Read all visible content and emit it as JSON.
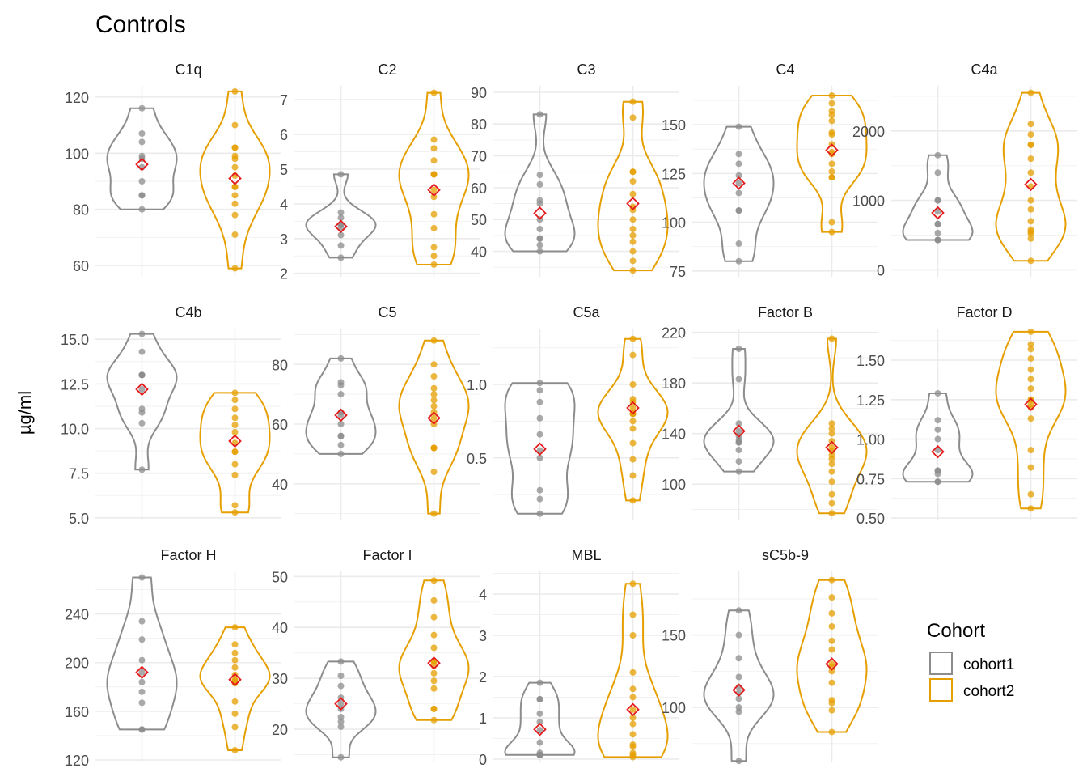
{
  "chart_data": {
    "type": "violin",
    "title": "Controls",
    "ylabel": "µg/ml",
    "xlabel": "",
    "grid": true,
    "legend": {
      "title": "Cohort",
      "placement": "right",
      "entries": [
        {
          "name": "cohort1",
          "color": "#8c8c8c"
        },
        {
          "name": "cohort2",
          "color": "#e69f00"
        }
      ]
    },
    "colors": {
      "cohort1": "#8c8c8c",
      "cohort2": "#e69f00",
      "mean_marker": "#e41a1c",
      "grid": "#ebebeb"
    },
    "groups": [
      "cohort1",
      "cohort2"
    ],
    "panels": [
      {
        "name": "C1q",
        "ylim": [
          56,
          124
        ],
        "ticks": [
          60,
          80,
          100,
          120
        ],
        "cohort1": {
          "min": 80,
          "max": 116,
          "mean": 96,
          "points": [
            80,
            85,
            85,
            90,
            95,
            98,
            99,
            104,
            107,
            116
          ]
        },
        "cohort2": {
          "min": 59,
          "max": 122,
          "mean": 91,
          "points": [
            59,
            71,
            78,
            82,
            85,
            88,
            88,
            92,
            95,
            98,
            99,
            102,
            102,
            110,
            122
          ]
        }
      },
      {
        "name": "C2",
        "ylim": [
          1.9,
          7.4
        ],
        "ticks": [
          2,
          3,
          4,
          5,
          6,
          7
        ],
        "cohort1": {
          "min": 2.45,
          "max": 4.85,
          "mean": 3.35,
          "points": [
            2.45,
            2.8,
            3.1,
            3.3,
            3.4,
            3.4,
            3.6,
            3.75,
            4.85
          ]
        },
        "cohort2": {
          "min": 2.25,
          "max": 7.2,
          "mean": 4.4,
          "points": [
            2.25,
            2.5,
            2.75,
            3.3,
            3.7,
            4.2,
            4.4,
            4.85,
            4.85,
            4.85,
            5.25,
            5.6,
            5.85,
            7.2
          ]
        }
      },
      {
        "name": "C3",
        "ylim": [
          32,
          92
        ],
        "ticks": [
          40,
          50,
          60,
          70,
          80,
          90
        ],
        "cohort1": {
          "min": 40,
          "max": 83,
          "mean": 52,
          "points": [
            40,
            42,
            44,
            44,
            47,
            50,
            55,
            56,
            61,
            64,
            83
          ]
        },
        "cohort2": {
          "min": 34,
          "max": 87,
          "mean": 55,
          "points": [
            34,
            37,
            40,
            43,
            45,
            47,
            50,
            53,
            54,
            58,
            62,
            65,
            65,
            82,
            87
          ]
        }
      },
      {
        "name": "C4",
        "ylim": [
          72,
          170
        ],
        "ticks": [
          75,
          100,
          125,
          150
        ],
        "cohort1": {
          "min": 80,
          "max": 149,
          "mean": 120,
          "points": [
            80,
            89,
            106,
            106,
            115,
            120,
            124,
            130,
            135,
            149
          ]
        },
        "cohort2": {
          "min": 95,
          "max": 165,
          "mean": 137,
          "points": [
            95,
            100,
            123,
            123,
            126,
            130,
            135,
            136,
            140,
            145,
            146,
            152,
            155,
            157,
            161,
            165
          ]
        }
      },
      {
        "name": "C4a",
        "ylim": [
          -100,
          2650
        ],
        "ticks": [
          0,
          1000,
          2000
        ],
        "cohort1": {
          "min": 430,
          "max": 1650,
          "mean": 820,
          "points": [
            430,
            430,
            430,
            530,
            660,
            660,
            840,
            1000,
            1000,
            1400,
            1650
          ]
        },
        "cohort2": {
          "min": 130,
          "max": 2550,
          "mean": 1230,
          "points": [
            130,
            450,
            520,
            550,
            580,
            700,
            870,
            1000,
            1200,
            1400,
            1600,
            1800,
            1800,
            1950,
            2100,
            2550
          ]
        }
      },
      {
        "name": "C4b",
        "ylim": [
          4.9,
          15.6
        ],
        "ticks": [
          5.0,
          7.5,
          10.0,
          12.5,
          15.0
        ],
        "cohort1": {
          "min": 7.7,
          "max": 15.3,
          "mean": 12.2,
          "points": [
            7.7,
            10.3,
            10.9,
            11.1,
            12.2,
            13.0,
            13.0,
            13.0,
            13.0,
            14.3,
            15.3
          ]
        },
        "cohort2": {
          "min": 5.3,
          "max": 12.0,
          "mean": 9.3,
          "points": [
            5.3,
            5.7,
            7.4,
            8.0,
            8.7,
            8.7,
            9.2,
            9.8,
            10.2,
            10.6,
            11.1,
            11.6,
            12.0
          ]
        }
      },
      {
        "name": "C5",
        "ylim": [
          28,
          92
        ],
        "ticks": [
          40,
          60,
          80
        ],
        "cohort1": {
          "min": 50,
          "max": 82,
          "mean": 63,
          "points": [
            50,
            53,
            56,
            56,
            60,
            63,
            64,
            70,
            73,
            74,
            82
          ]
        },
        "cohort2": {
          "min": 30,
          "max": 88,
          "mean": 62,
          "points": [
            30,
            44,
            52,
            52,
            52,
            60,
            62,
            64,
            66,
            68,
            70,
            72,
            76,
            80,
            88
          ]
        }
      },
      {
        "name": "C5a",
        "ylim": [
          0.08,
          1.38
        ],
        "ticks": [
          0.5,
          1.0
        ],
        "cohort1": {
          "min": 0.12,
          "max": 1.01,
          "mean": 0.56,
          "points": [
            0.12,
            0.22,
            0.28,
            0.5,
            0.55,
            0.66,
            0.77,
            0.88,
            0.96,
            1.01
          ]
        },
        "cohort2": {
          "min": 0.21,
          "max": 1.31,
          "mean": 0.84,
          "points": [
            0.21,
            0.38,
            0.49,
            0.6,
            0.7,
            0.75,
            0.8,
            0.8,
            0.8,
            0.84,
            0.88,
            0.9,
            1.0,
            1.2,
            1.31
          ]
        }
      },
      {
        "name": "Factor B",
        "ylim": [
          72,
          223
        ],
        "ticks": [
          100,
          140,
          180,
          220
        ],
        "cohort1": {
          "min": 110,
          "max": 207,
          "mean": 142,
          "points": [
            110,
            118,
            127,
            133,
            133,
            135,
            138,
            142,
            148,
            183,
            207
          ]
        },
        "cohort2": {
          "min": 77,
          "max": 215,
          "mean": 129,
          "points": [
            77,
            85,
            92,
            102,
            110,
            116,
            120,
            123,
            126,
            129,
            134,
            140,
            144,
            148,
            215
          ]
        }
      },
      {
        "name": "Factor D",
        "ylim": [
          0.49,
          1.7
        ],
        "ticks": [
          0.5,
          0.75,
          1.0,
          1.25,
          1.5
        ],
        "cohort1": {
          "min": 0.73,
          "max": 1.29,
          "mean": 0.92,
          "points": [
            0.73,
            0.73,
            0.78,
            0.8,
            0.8,
            0.93,
            1.0,
            1.06,
            1.12,
            1.29
          ]
        },
        "cohort2": {
          "min": 0.56,
          "max": 1.68,
          "mean": 1.22,
          "points": [
            0.56,
            0.65,
            0.82,
            0.93,
            1.13,
            1.2,
            1.22,
            1.25,
            1.25,
            1.32,
            1.38,
            1.44,
            1.51,
            1.57,
            1.6,
            1.68
          ]
        }
      },
      {
        "name": "Factor H",
        "ylim": [
          118,
          275
        ],
        "ticks": [
          120,
          160,
          200,
          240
        ],
        "cohort1": {
          "min": 145,
          "max": 270,
          "mean": 192,
          "points": [
            145,
            145,
            167,
            176,
            184,
            192,
            202,
            219,
            234,
            270
          ]
        },
        "cohort2": {
          "min": 128,
          "max": 229,
          "mean": 186,
          "points": [
            128,
            147,
            158,
            168,
            183,
            184,
            185,
            186,
            190,
            196,
            202,
            208,
            215,
            229
          ]
        }
      },
      {
        "name": "Factor I",
        "ylim": [
          13.5,
          51
        ],
        "ticks": [
          20,
          30,
          40,
          50
        ],
        "cohort1": {
          "min": 14.5,
          "max": 33.3,
          "mean": 25,
          "points": [
            14.5,
            20.5,
            21.5,
            22.4,
            24,
            25,
            26.2,
            28.5,
            30.5,
            33.3
          ]
        },
        "cohort2": {
          "min": 21.8,
          "max": 49.2,
          "mean": 33,
          "points": [
            21.8,
            24,
            24,
            28,
            29.5,
            31,
            32.5,
            33.3,
            33.3,
            36,
            38.5,
            42,
            45.3,
            49.2
          ]
        }
      },
      {
        "name": "MBL",
        "ylim": [
          -0.08,
          4.55
        ],
        "ticks": [
          0,
          1,
          2,
          3,
          4
        ],
        "cohort1": {
          "min": 0.1,
          "max": 1.85,
          "mean": 0.72,
          "points": [
            0.1,
            0.1,
            0.1,
            0.1,
            0.15,
            0.4,
            0.7,
            0.9,
            1.1,
            1.45,
            1.45,
            1.85
          ]
        },
        "cohort2": {
          "min": 0.05,
          "max": 4.25,
          "mean": 1.2,
          "points": [
            0.05,
            0.1,
            0.15,
            0.3,
            0.35,
            0.6,
            0.85,
            1.0,
            1.2,
            1.5,
            1.7,
            2.1,
            3.0,
            3.5,
            4.25
          ]
        }
      },
      {
        "name": "sC5b-9",
        "ylim": [
          62,
          194
        ],
        "ticks": [
          100,
          150
        ],
        "cohort1": {
          "min": 63,
          "max": 167,
          "mean": 112,
          "points": [
            63,
            97,
            100,
            106,
            110,
            114,
            121,
            134,
            150,
            167
          ]
        },
        "cohort2": {
          "min": 83,
          "max": 188,
          "mean": 130,
          "points": [
            83,
            98,
            103,
            105,
            117,
            125,
            128,
            130,
            140,
            146,
            156,
            165,
            176,
            188
          ]
        }
      }
    ]
  }
}
